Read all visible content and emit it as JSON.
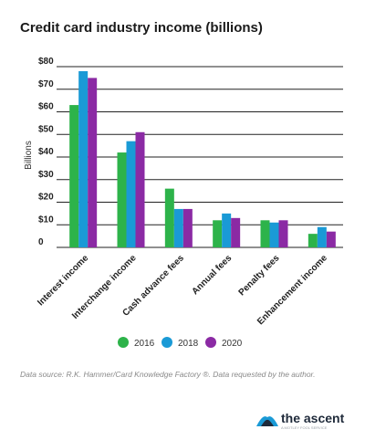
{
  "chart_data": {
    "type": "bar",
    "title": "Credit card industry income (billions)",
    "ylabel": "Billions",
    "xlabel": "",
    "ylim": [
      0,
      80
    ],
    "yticks": [
      0,
      10,
      20,
      30,
      40,
      50,
      60,
      70,
      80
    ],
    "ytick_labels": [
      "0",
      "$10",
      "$20",
      "$30",
      "$40",
      "$50",
      "$60",
      "$70",
      "$80"
    ],
    "grid": true,
    "legend_position": "bottom",
    "categories": [
      "Interest income",
      "Interchange income",
      "Cash advance fees",
      "Annual fees",
      "Penalty fees",
      "Enhancement income"
    ],
    "series": [
      {
        "name": "2016",
        "color": "#2db34a",
        "values": [
          63,
          42,
          26,
          12,
          12,
          6
        ]
      },
      {
        "name": "2018",
        "color": "#1a9ad6",
        "values": [
          78,
          47,
          17,
          15,
          11,
          9
        ]
      },
      {
        "name": "2020",
        "color": "#8b2aa4",
        "values": [
          75,
          51,
          17,
          13,
          12,
          7
        ]
      }
    ]
  },
  "source_note": "Data source: R.K. Hammer/Card Knowledge Factory ®. Data requested by the author.",
  "brand": {
    "name": "the ascent",
    "tagline": "A MOTLEY FOOL SERVICE",
    "icon": "ascent-logo-icon"
  }
}
